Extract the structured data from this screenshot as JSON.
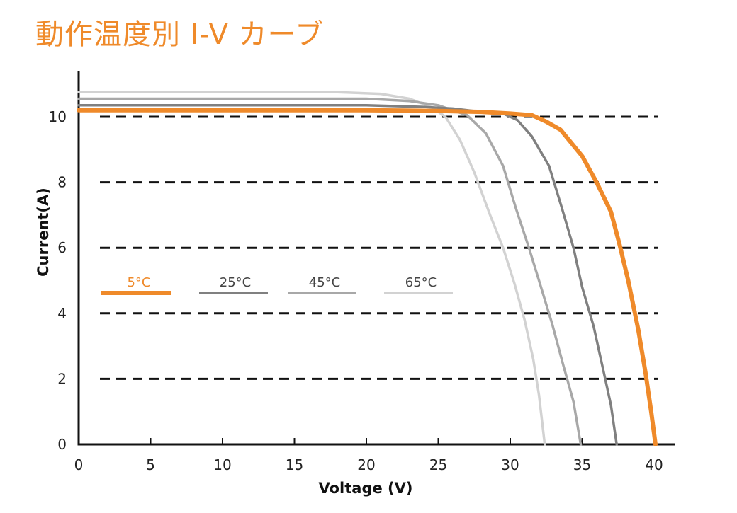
{
  "title": "動作温度別 I-V カーブ",
  "chart_data": {
    "type": "line",
    "xlabel": "Voltage  (V)",
    "ylabel": "Current(A)",
    "xlim": [
      0,
      40
    ],
    "ylim": [
      0,
      11
    ],
    "xticks": [
      "0",
      "5",
      "10",
      "15",
      "20",
      "25",
      "30",
      "35",
      "40"
    ],
    "yticks": [
      "0",
      "2",
      "4",
      "6",
      "8",
      "10"
    ],
    "grid": "horizontal-dashed",
    "legend": "inside-left",
    "series": [
      {
        "name": "5°C",
        "color": "#ef8a2a",
        "points": [
          [
            0,
            10.2
          ],
          [
            10,
            10.2
          ],
          [
            20,
            10.2
          ],
          [
            25,
            10.18
          ],
          [
            28,
            10.15
          ],
          [
            30,
            10.1
          ],
          [
            31.5,
            10.05
          ],
          [
            32.5,
            9.85
          ],
          [
            33.5,
            9.6
          ],
          [
            35,
            8.8
          ],
          [
            36,
            8
          ],
          [
            37,
            7.1
          ],
          [
            37.6,
            6.1
          ],
          [
            38.2,
            5
          ],
          [
            38.9,
            3.5
          ],
          [
            39.4,
            2.2
          ],
          [
            39.8,
            1
          ],
          [
            40.1,
            0
          ]
        ]
      },
      {
        "name": "25°C",
        "color": "#808080",
        "points": [
          [
            0,
            10.35
          ],
          [
            10,
            10.35
          ],
          [
            20,
            10.35
          ],
          [
            24,
            10.3
          ],
          [
            26,
            10.25
          ],
          [
            28,
            10.15
          ],
          [
            29.5,
            10.1
          ],
          [
            30.5,
            9.9
          ],
          [
            31.5,
            9.4
          ],
          [
            32.7,
            8.5
          ],
          [
            33.6,
            7.2
          ],
          [
            34.4,
            6
          ],
          [
            35,
            4.8
          ],
          [
            35.8,
            3.6
          ],
          [
            36.5,
            2.2
          ],
          [
            37,
            1.2
          ],
          [
            37.4,
            0
          ]
        ]
      },
      {
        "name": "45°C",
        "color": "#a8a8a8",
        "points": [
          [
            0,
            10.55
          ],
          [
            10,
            10.55
          ],
          [
            20,
            10.55
          ],
          [
            23,
            10.48
          ],
          [
            25,
            10.35
          ],
          [
            27,
            10.05
          ],
          [
            28.3,
            9.5
          ],
          [
            29.5,
            8.5
          ],
          [
            30.4,
            7.2
          ],
          [
            31.3,
            6
          ],
          [
            32,
            5
          ],
          [
            32.9,
            3.7
          ],
          [
            33.7,
            2.4
          ],
          [
            34.4,
            1.3
          ],
          [
            34.9,
            0
          ]
        ]
      },
      {
        "name": "65°C",
        "color": "#d2d2d2",
        "points": [
          [
            0,
            10.75
          ],
          [
            10,
            10.75
          ],
          [
            18,
            10.75
          ],
          [
            21,
            10.7
          ],
          [
            23,
            10.55
          ],
          [
            24.5,
            10.3
          ],
          [
            25.5,
            10
          ],
          [
            26.5,
            9.3
          ],
          [
            27.5,
            8.3
          ],
          [
            28.6,
            7
          ],
          [
            29.5,
            6
          ],
          [
            30.3,
            4.9
          ],
          [
            31,
            3.8
          ],
          [
            31.6,
            2.6
          ],
          [
            32,
            1.5
          ],
          [
            32.4,
            0
          ]
        ]
      }
    ]
  }
}
